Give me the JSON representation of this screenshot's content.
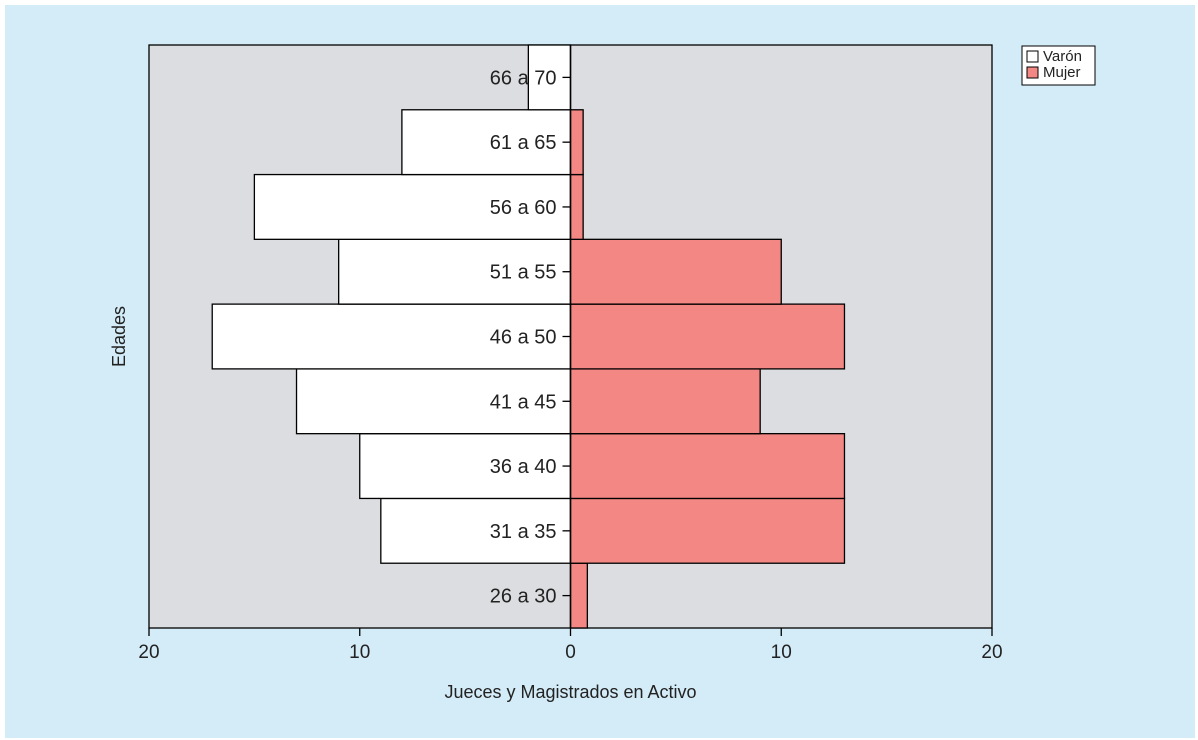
{
  "colors": {
    "background": "#d3ecf8",
    "plot_area": "#dcdde0",
    "varon": "#ffffff",
    "mujer": "#f28783",
    "stroke": "#000000"
  },
  "chart_data": {
    "type": "bar",
    "orientation": "horizontal",
    "layout": "population-pyramid",
    "title": "",
    "xlabel": "Jueces y Magistrados en Activo",
    "ylabel": "Edades",
    "xlim": [
      -20,
      20
    ],
    "x_ticks": [
      -20,
      -10,
      0,
      10,
      20
    ],
    "x_tick_labels": [
      "20",
      "10",
      "0",
      "10",
      "20"
    ],
    "categories": [
      "26 a 30",
      "31 a 35",
      "36 a 40",
      "41 a 45",
      "46 a 50",
      "51 a 55",
      "56 a 60",
      "61 a 65",
      "66 a 70"
    ],
    "series": [
      {
        "name": "Varón",
        "side": "left",
        "values": [
          0,
          9,
          10,
          13,
          17,
          11,
          15,
          8,
          2
        ]
      },
      {
        "name": "Mujer",
        "side": "right",
        "values": [
          0.8,
          13,
          13,
          9,
          13,
          10,
          0.6,
          0.6,
          0
        ]
      }
    ],
    "grid": false,
    "legend": "top-right"
  }
}
